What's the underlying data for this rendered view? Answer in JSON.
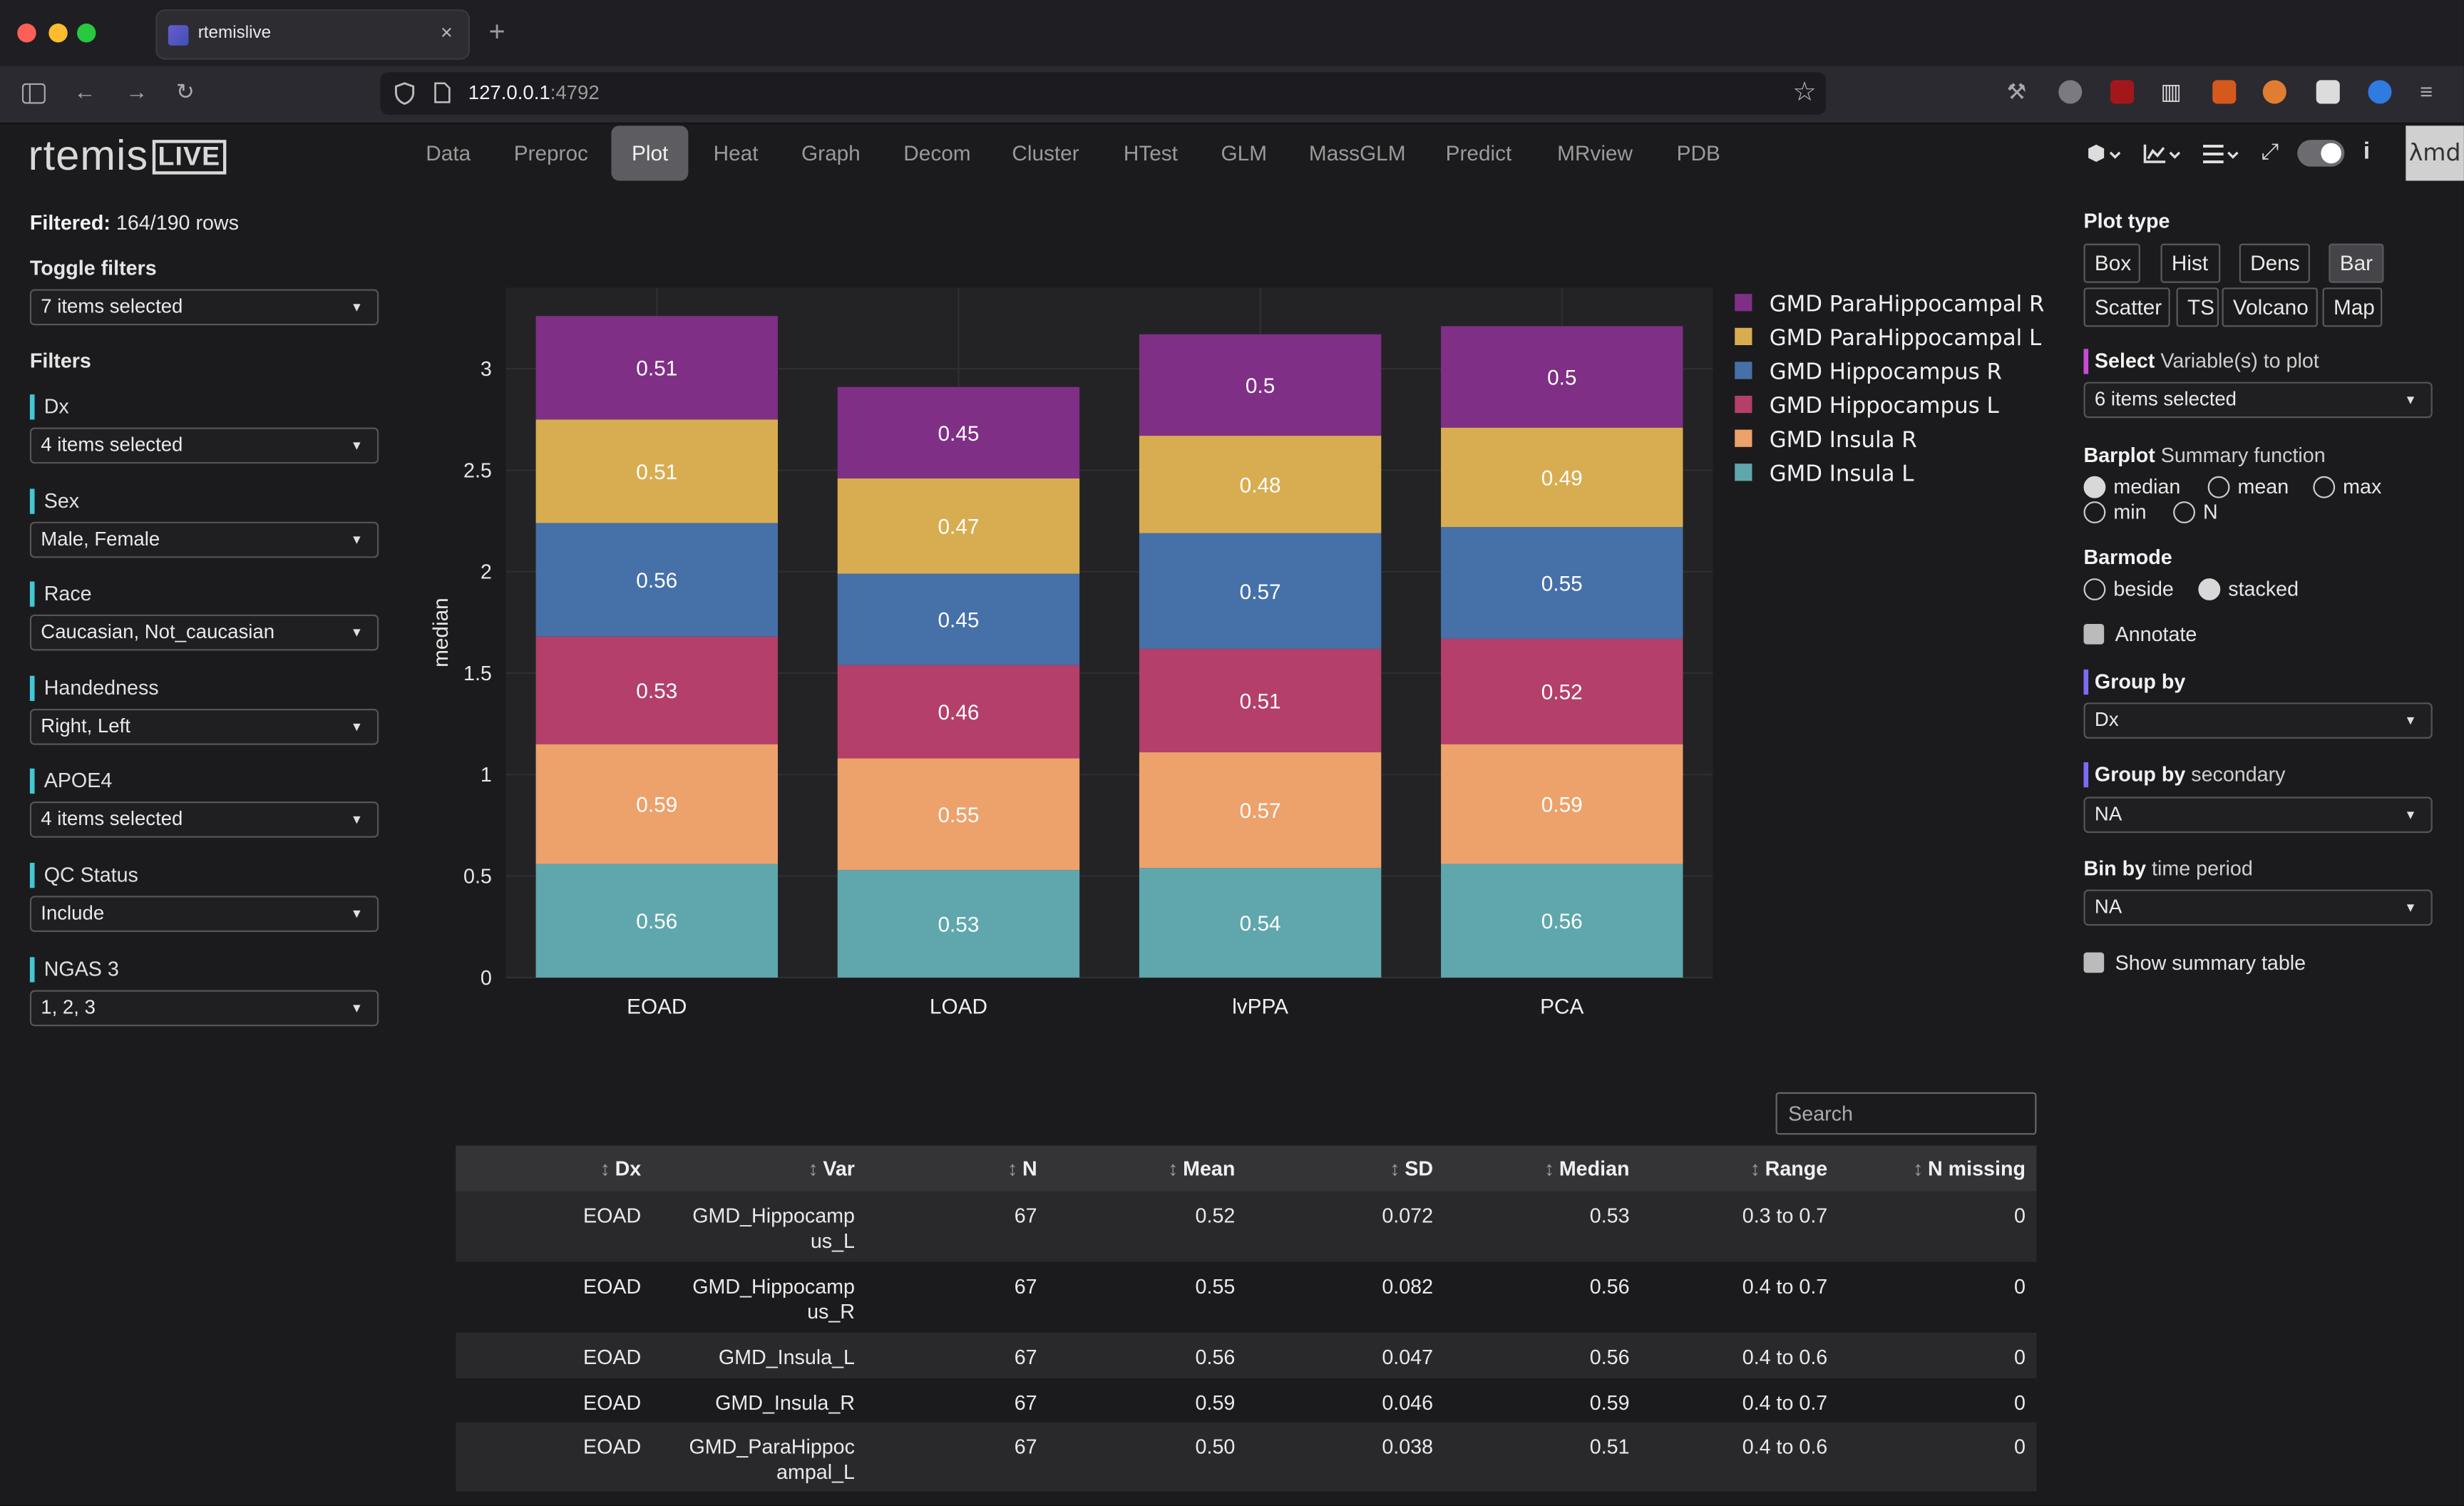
{
  "browser": {
    "tab_title": "rtemislive",
    "tab_close": "×",
    "new_tab": "+",
    "url_host": "127.0.0.1",
    "url_port": ":4792"
  },
  "app": {
    "logo_text": "rtemis",
    "logo_box": "LIVE",
    "lambda_text": "λmd",
    "nav": [
      "Data",
      "Preproc",
      "Plot",
      "Heat",
      "Graph",
      "Decom",
      "Cluster",
      "HTest",
      "GLM",
      "MassGLM",
      "Predict",
      "MRview",
      "PDB"
    ],
    "active_nav": "Plot"
  },
  "sidebar": {
    "filtered_label": "Filtered:",
    "filtered_value": "164/190 rows",
    "toggle_filters_label": "Toggle filters",
    "toggle_filters_value": "7 items selected",
    "filters_heading": "Filters",
    "filters": [
      {
        "label": "Dx",
        "value": "4 items selected"
      },
      {
        "label": "Sex",
        "value": "Male, Female"
      },
      {
        "label": "Race",
        "value": "Caucasian, Not_caucasian"
      },
      {
        "label": "Handedness",
        "value": "Right, Left"
      },
      {
        "label": "APOE4",
        "value": "4 items selected"
      },
      {
        "label": "QC Status",
        "value": "Include"
      },
      {
        "label": "NGAS 3",
        "value": "1, 2, 3"
      }
    ],
    "accent_color": "#41c7d6"
  },
  "right_panel": {
    "plot_type_label": "Plot type",
    "plot_types": [
      "Box",
      "Hist",
      "Dens",
      "Bar",
      "Scatter",
      "TS",
      "Volcano",
      "Map"
    ],
    "active_plot_type": "Bar",
    "select_vars_bold": "Select",
    "select_vars_rest": " Variable(s) to plot",
    "select_vars_value": "6 items selected",
    "barplot_bold": "Barplot",
    "barplot_rest": " Summary function",
    "summary_options": [
      "median",
      "mean",
      "max",
      "min",
      "N"
    ],
    "summary_selected": "median",
    "barmode_label": "Barmode",
    "barmode_options": [
      "beside",
      "stacked"
    ],
    "barmode_selected": "stacked",
    "annotate_label": "Annotate",
    "group_by_label": "Group by",
    "group_by_value": "Dx",
    "group_by2_bold": "Group by",
    "group_by2_rest": " secondary",
    "group_by2_value": "NA",
    "bin_by_bold": "Bin by",
    "bin_by_rest": " time period",
    "bin_by_value": "NA",
    "show_summary_label": "Show summary table",
    "select_accent": "#c84bd6",
    "group_accent": "#7b6cf2"
  },
  "chart_data": {
    "type": "bar",
    "barmode": "stacked",
    "categories": [
      "EOAD",
      "LOAD",
      "lvPPA",
      "PCA"
    ],
    "ylabel": "median",
    "xlabel": "",
    "ylim": [
      0,
      3.4
    ],
    "yticks": [
      "0",
      "0.5",
      "1",
      "1.5",
      "2",
      "2.5",
      "3"
    ],
    "series": [
      {
        "name": "GMD Insula L",
        "color": "#5fa7ad",
        "values": [
          0.56,
          0.53,
          0.54,
          0.56
        ]
      },
      {
        "name": "GMD Insula R",
        "color": "#eda16b",
        "values": [
          0.59,
          0.55,
          0.57,
          0.59
        ]
      },
      {
        "name": "GMD Hippocampus L",
        "color": "#b33f6a",
        "values": [
          0.53,
          0.46,
          0.51,
          0.52
        ]
      },
      {
        "name": "GMD Hippocampus R",
        "color": "#4670a8",
        "values": [
          0.56,
          0.45,
          0.57,
          0.55
        ]
      },
      {
        "name": "GMD ParaHippocampal L",
        "color": "#d8ad51",
        "values": [
          0.51,
          0.47,
          0.48,
          0.49
        ]
      },
      {
        "name": "GMD ParaHippocampal R",
        "color": "#7f2f86",
        "values": [
          0.51,
          0.45,
          0.5,
          0.5
        ]
      }
    ],
    "legend_position": "right",
    "grid": true
  },
  "table": {
    "search_placeholder": "Search",
    "sort_glyph": "↕",
    "columns": [
      "Dx",
      "Var",
      "N",
      "Mean",
      "SD",
      "Median",
      "Range",
      "N missing"
    ],
    "rows": [
      {
        "dx": "EOAD",
        "var1": "GMD_Hippocamp",
        "var2": "us_L",
        "n": "67",
        "mean": "0.52",
        "sd": "0.072",
        "median": "0.53",
        "range": "0.3 to 0.7",
        "missing": "0"
      },
      {
        "dx": "EOAD",
        "var1": "GMD_Hippocamp",
        "var2": "us_R",
        "n": "67",
        "mean": "0.55",
        "sd": "0.082",
        "median": "0.56",
        "range": "0.4 to 0.7",
        "missing": "0"
      },
      {
        "dx": "EOAD",
        "var1": "GMD_Insula_L",
        "var2": "",
        "n": "67",
        "mean": "0.56",
        "sd": "0.047",
        "median": "0.56",
        "range": "0.4 to 0.6",
        "missing": "0"
      },
      {
        "dx": "EOAD",
        "var1": "GMD_Insula_R",
        "var2": "",
        "n": "67",
        "mean": "0.59",
        "sd": "0.046",
        "median": "0.59",
        "range": "0.4 to 0.7",
        "missing": "0"
      },
      {
        "dx": "EOAD",
        "var1": "GMD_ParaHippoc",
        "var2": "ampal_L",
        "n": "67",
        "mean": "0.50",
        "sd": "0.038",
        "median": "0.51",
        "range": "0.4 to 0.6",
        "missing": "0"
      }
    ]
  }
}
